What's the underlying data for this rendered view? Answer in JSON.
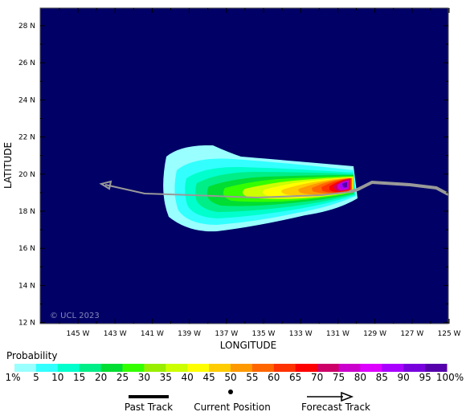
{
  "map": {
    "latitude_label": "LATITUDE",
    "longitude_label": "LONGITUDE",
    "copyright": "© UCL 2023",
    "lat_ticks": [
      "28 N",
      "26 N",
      "24 N",
      "22 N",
      "20 N",
      "18 N",
      "16 N",
      "14 N",
      "12 N"
    ],
    "lon_ticks": [
      "145 W",
      "143 W",
      "141 W",
      "139 W",
      "137 W",
      "135 W",
      "133 W",
      "131 W",
      "129 W",
      "127 W",
      "125 W"
    ],
    "background_color": "#000066",
    "track_color": "#999999"
  },
  "probability": {
    "title": "Probability",
    "labels": [
      "1%",
      "5",
      "10",
      "15",
      "20",
      "25",
      "30",
      "35",
      "40",
      "45",
      "50",
      "55",
      "60",
      "65",
      "70",
      "75",
      "80",
      "85",
      "90",
      "95",
      "100%"
    ],
    "colors": [
      "#99ffff",
      "#33ffff",
      "#00ffcc",
      "#00ee88",
      "#00dd33",
      "#33ff00",
      "#99ee00",
      "#ccff00",
      "#ffff00",
      "#ffcc00",
      "#ff9900",
      "#ff6600",
      "#ff3300",
      "#ff0000",
      "#cc0066",
      "#cc00cc",
      "#dd00ff",
      "#aa00ff",
      "#7700dd",
      "#5500aa",
      "#660066"
    ]
  },
  "legend": {
    "past_track": "Past Track",
    "current_position": "Current Position",
    "forecast_track": "Forecast Track"
  }
}
